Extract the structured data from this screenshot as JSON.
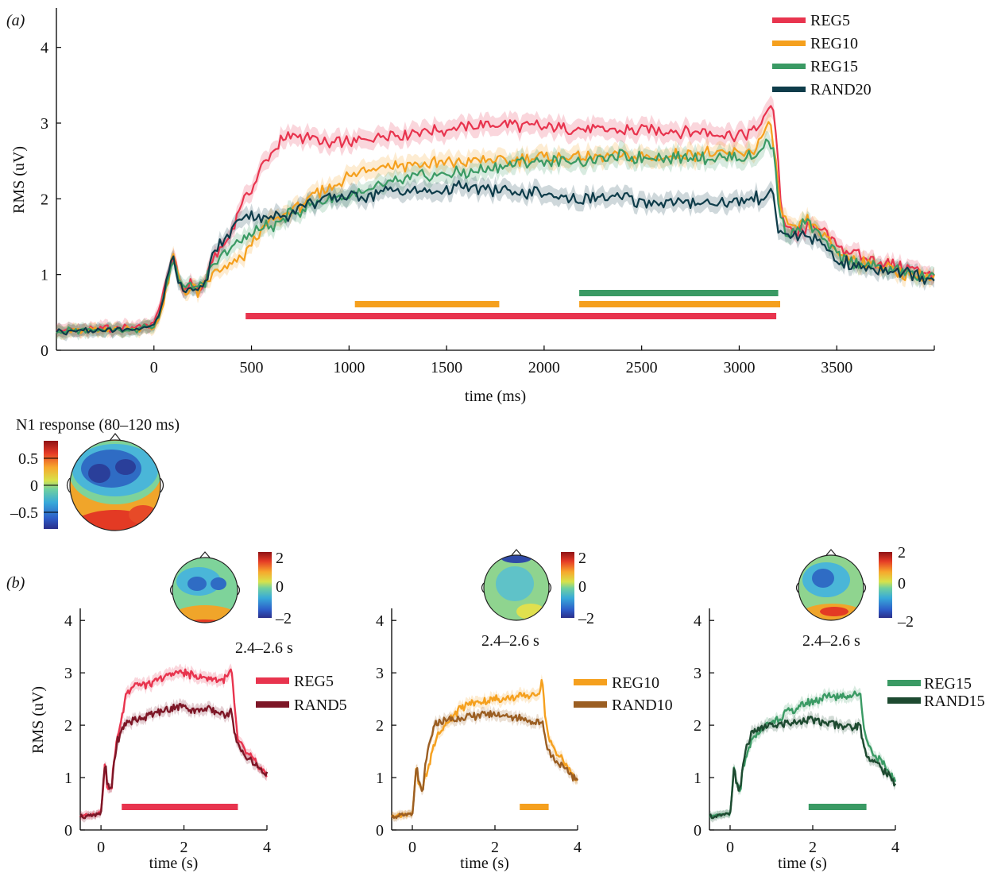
{
  "panel_a": {
    "label": "(a)",
    "legend": [
      "REG5",
      "REG10",
      "REG15",
      "RAND20"
    ],
    "topo_title": "N1 response (80–120 ms)",
    "topo_colorbar_ticks": [
      "0.5",
      "0",
      "–0.5"
    ]
  },
  "panel_b": {
    "label": "(b)",
    "subplots": [
      {
        "time_window": "2.4–2.6 s",
        "colorbar_ticks": [
          "2",
          "0",
          "–2"
        ],
        "legend": [
          "REG5",
          "RAND5"
        ]
      },
      {
        "time_window": "2.4–2.6 s",
        "colorbar_ticks": [
          "2",
          "0",
          "–2"
        ],
        "legend": [
          "REG10",
          "RAND10"
        ]
      },
      {
        "time_window": "2.4–2.6 s",
        "colorbar_ticks": [
          "2",
          "0",
          "–2"
        ],
        "legend": [
          "REG15",
          "RAND15"
        ]
      }
    ]
  },
  "colors": {
    "REG5": "#e8344e",
    "REG10": "#f5a01e",
    "REG15": "#3a9a64",
    "RAND20": "#0e3c4a",
    "RAND5": "#7d1626",
    "RAND10": "#9b5e22",
    "RAND15": "#1d4a30"
  },
  "chart_data": [
    {
      "type": "line",
      "xlabel": "time (ms)",
      "ylabel": "RMS (uV)",
      "xlim": [
        -500,
        4000
      ],
      "ylim": [
        0,
        4.5
      ],
      "xticks": [
        0,
        500,
        1000,
        1500,
        2000,
        2500,
        3000,
        3500
      ],
      "yticks": [
        0,
        1,
        2,
        3,
        4
      ],
      "series": [
        {
          "name": "REG5",
          "x": [
            -500,
            -100,
            0,
            30,
            60,
            100,
            130,
            160,
            200,
            230,
            260,
            300,
            340,
            380,
            420,
            460,
            500,
            550,
            600,
            650,
            700,
            800,
            900,
            1000,
            1100,
            1200,
            1400,
            1600,
            1800,
            2000,
            2200,
            2400,
            2600,
            2800,
            3000,
            3080,
            3120,
            3160,
            3180,
            3200,
            3220,
            3260,
            3300,
            3350,
            3400,
            3500,
            3600,
            3800,
            4000
          ],
          "y": [
            0.25,
            0.3,
            0.35,
            0.6,
            0.9,
            1.25,
            0.85,
            0.8,
            0.9,
            0.75,
            0.9,
            1.2,
            1.3,
            1.45,
            1.75,
            2.0,
            2.1,
            2.4,
            2.6,
            2.75,
            2.82,
            2.8,
            2.7,
            2.75,
            2.8,
            2.85,
            2.9,
            2.95,
            3.0,
            2.95,
            2.93,
            2.9,
            2.9,
            2.88,
            2.85,
            2.9,
            3.0,
            3.25,
            3.15,
            2.5,
            1.75,
            1.55,
            1.55,
            1.6,
            1.65,
            1.4,
            1.25,
            1.1,
            1.0
          ]
        },
        {
          "name": "REG10",
          "x": [
            -500,
            -100,
            0,
            30,
            60,
            100,
            130,
            160,
            200,
            230,
            260,
            300,
            340,
            380,
            420,
            460,
            500,
            550,
            600,
            650,
            700,
            800,
            900,
            1000,
            1100,
            1200,
            1400,
            1600,
            1800,
            2000,
            2200,
            2400,
            2600,
            2800,
            3000,
            3080,
            3120,
            3160,
            3180,
            3200,
            3220,
            3260,
            3300,
            3350,
            3400,
            3500,
            3600,
            3800,
            4000
          ],
          "y": [
            0.25,
            0.28,
            0.3,
            0.45,
            0.75,
            1.25,
            0.9,
            0.75,
            0.85,
            0.75,
            0.85,
            1.0,
            1.05,
            1.1,
            1.15,
            1.25,
            1.4,
            1.55,
            1.7,
            1.75,
            1.85,
            2.0,
            2.15,
            2.3,
            2.4,
            2.45,
            2.45,
            2.5,
            2.5,
            2.55,
            2.55,
            2.55,
            2.55,
            2.6,
            2.6,
            2.65,
            2.85,
            2.95,
            2.7,
            2.1,
            1.8,
            1.6,
            1.65,
            1.7,
            1.6,
            1.3,
            1.2,
            1.05,
            0.95
          ]
        },
        {
          "name": "REG15",
          "x": [
            -500,
            -100,
            0,
            30,
            60,
            100,
            130,
            160,
            200,
            230,
            260,
            300,
            340,
            380,
            420,
            460,
            500,
            550,
            600,
            650,
            700,
            800,
            900,
            1000,
            1100,
            1200,
            1400,
            1600,
            1800,
            2000,
            2200,
            2400,
            2600,
            2800,
            3000,
            3080,
            3120,
            3160,
            3180,
            3200,
            3220,
            3260,
            3300,
            3350,
            3400,
            3500,
            3600,
            3800,
            4000
          ],
          "y": [
            0.25,
            0.28,
            0.3,
            0.5,
            0.85,
            1.2,
            0.9,
            0.8,
            0.9,
            0.8,
            0.9,
            1.1,
            1.2,
            1.3,
            1.4,
            1.45,
            1.55,
            1.6,
            1.65,
            1.7,
            1.8,
            1.9,
            2.0,
            2.05,
            2.1,
            2.2,
            2.3,
            2.35,
            2.45,
            2.5,
            2.5,
            2.55,
            2.55,
            2.55,
            2.55,
            2.55,
            2.7,
            2.75,
            2.6,
            2.0,
            1.65,
            1.55,
            1.6,
            1.7,
            1.55,
            1.25,
            1.15,
            1.05,
            0.95
          ]
        },
        {
          "name": "RAND20",
          "x": [
            -500,
            -100,
            0,
            30,
            60,
            100,
            130,
            160,
            200,
            230,
            260,
            300,
            340,
            380,
            420,
            460,
            500,
            550,
            600,
            650,
            700,
            800,
            900,
            1000,
            1100,
            1200,
            1400,
            1600,
            1800,
            2000,
            2200,
            2400,
            2600,
            2800,
            3000,
            3080,
            3120,
            3160,
            3180,
            3200,
            3220,
            3260,
            3300,
            3350,
            3400,
            3500,
            3600,
            3800,
            4000
          ],
          "y": [
            0.25,
            0.28,
            0.32,
            0.5,
            0.85,
            1.3,
            0.85,
            0.8,
            0.85,
            0.75,
            0.85,
            1.25,
            1.4,
            1.5,
            1.7,
            1.8,
            1.8,
            1.75,
            1.75,
            1.8,
            1.8,
            1.95,
            2.0,
            2.05,
            2.05,
            2.1,
            2.1,
            2.15,
            2.1,
            2.05,
            2.0,
            2.0,
            1.95,
            1.95,
            1.95,
            2.0,
            2.0,
            2.1,
            2.0,
            1.6,
            1.55,
            1.5,
            1.5,
            1.5,
            1.45,
            1.2,
            1.1,
            1.05,
            0.95
          ]
        }
      ],
      "significance_bars": [
        {
          "series": "REG15",
          "x": [
            2180,
            3200
          ]
        },
        {
          "series": "REG10",
          "x": [
            1030,
            1770
          ]
        },
        {
          "series": "REG10",
          "x": [
            2180,
            3210
          ]
        },
        {
          "series": "REG5",
          "x": [
            470,
            3190
          ]
        }
      ]
    },
    {
      "type": "line",
      "xlabel": "time (s)",
      "ylabel": "RMS (uV)",
      "xlim": [
        -0.5,
        4
      ],
      "ylim": [
        0,
        4.2
      ],
      "xticks": [
        0,
        2,
        4
      ],
      "yticks": [
        0,
        1,
        2,
        3,
        4
      ],
      "series": [
        {
          "name": "REG5",
          "x": [
            -0.5,
            -0.1,
            0,
            0.05,
            0.1,
            0.15,
            0.2,
            0.25,
            0.3,
            0.4,
            0.5,
            0.6,
            0.8,
            1.0,
            1.2,
            1.4,
            1.6,
            1.8,
            2.0,
            2.2,
            2.4,
            2.6,
            2.8,
            3.0,
            3.1,
            3.15,
            3.2,
            3.3,
            3.4,
            3.5,
            3.7,
            4.0
          ],
          "y": [
            0.25,
            0.3,
            0.35,
            0.8,
            1.3,
            0.85,
            0.8,
            0.75,
            1.2,
            1.8,
            2.1,
            2.6,
            2.8,
            2.75,
            2.8,
            2.85,
            2.95,
            3.0,
            3.0,
            2.95,
            2.9,
            2.9,
            2.85,
            2.9,
            3.0,
            3.05,
            2.5,
            1.7,
            1.6,
            1.5,
            1.3,
            1.05
          ]
        },
        {
          "name": "RAND5",
          "x": [
            -0.5,
            -0.1,
            0,
            0.05,
            0.1,
            0.15,
            0.2,
            0.25,
            0.3,
            0.4,
            0.5,
            0.6,
            0.8,
            1.0,
            1.2,
            1.4,
            1.6,
            1.8,
            2.0,
            2.2,
            2.4,
            2.6,
            2.8,
            3.0,
            3.1,
            3.15,
            3.2,
            3.3,
            3.4,
            3.5,
            3.7,
            4.0
          ],
          "y": [
            0.25,
            0.3,
            0.32,
            0.8,
            1.3,
            0.85,
            0.8,
            0.75,
            1.2,
            1.7,
            1.9,
            2.05,
            2.1,
            2.15,
            2.2,
            2.25,
            2.3,
            2.35,
            2.35,
            2.3,
            2.3,
            2.3,
            2.25,
            2.2,
            2.25,
            2.3,
            1.9,
            1.6,
            1.5,
            1.4,
            1.25,
            1.05
          ]
        }
      ],
      "significance_bars": [
        {
          "series": "REG5",
          "x": [
            0.5,
            3.3
          ]
        }
      ]
    },
    {
      "type": "line",
      "xlabel": "time (s)",
      "ylabel": "",
      "xlim": [
        -0.5,
        4
      ],
      "ylim": [
        0,
        4.2
      ],
      "xticks": [
        0,
        2,
        4
      ],
      "yticks": [
        0,
        1,
        2,
        3,
        4
      ],
      "series": [
        {
          "name": "REG10",
          "x": [
            -0.5,
            -0.1,
            0,
            0.05,
            0.1,
            0.15,
            0.2,
            0.25,
            0.3,
            0.4,
            0.5,
            0.6,
            0.8,
            1.0,
            1.2,
            1.4,
            1.6,
            1.8,
            2.0,
            2.2,
            2.4,
            2.6,
            2.8,
            3.0,
            3.1,
            3.15,
            3.2,
            3.3,
            3.4,
            3.5,
            3.7,
            4.0
          ],
          "y": [
            0.25,
            0.3,
            0.3,
            0.7,
            1.25,
            0.9,
            0.8,
            0.75,
            1.0,
            1.2,
            1.55,
            1.8,
            2.0,
            2.2,
            2.35,
            2.4,
            2.45,
            2.45,
            2.5,
            2.5,
            2.5,
            2.55,
            2.55,
            2.6,
            2.7,
            2.9,
            2.3,
            1.7,
            1.6,
            1.5,
            1.25,
            0.95
          ]
        },
        {
          "name": "RAND10",
          "x": [
            -0.5,
            -0.1,
            0,
            0.05,
            0.1,
            0.15,
            0.2,
            0.25,
            0.3,
            0.4,
            0.5,
            0.6,
            0.8,
            1.0,
            1.2,
            1.4,
            1.6,
            1.8,
            2.0,
            2.2,
            2.4,
            2.6,
            2.8,
            3.0,
            3.1,
            3.15,
            3.2,
            3.3,
            3.4,
            3.5,
            3.7,
            4.0
          ],
          "y": [
            0.25,
            0.3,
            0.3,
            0.7,
            1.25,
            0.9,
            0.8,
            0.75,
            1.1,
            1.6,
            1.9,
            2.05,
            2.1,
            2.1,
            2.15,
            2.15,
            2.2,
            2.2,
            2.2,
            2.2,
            2.15,
            2.15,
            2.1,
            2.05,
            2.05,
            2.1,
            1.8,
            1.5,
            1.4,
            1.3,
            1.15,
            0.95
          ]
        }
      ],
      "significance_bars": [
        {
          "series": "REG10",
          "x": [
            2.6,
            3.3
          ]
        }
      ]
    },
    {
      "type": "line",
      "xlabel": "time (s)",
      "ylabel": "",
      "xlim": [
        -0.5,
        4
      ],
      "ylim": [
        0,
        4.2
      ],
      "xticks": [
        0,
        2,
        4
      ],
      "yticks": [
        0,
        1,
        2,
        3,
        4
      ],
      "series": [
        {
          "name": "REG15",
          "x": [
            -0.5,
            -0.1,
            0,
            0.05,
            0.1,
            0.15,
            0.2,
            0.25,
            0.3,
            0.4,
            0.5,
            0.6,
            0.8,
            1.0,
            1.2,
            1.4,
            1.6,
            1.8,
            2.0,
            2.2,
            2.4,
            2.6,
            2.8,
            3.0,
            3.1,
            3.15,
            3.2,
            3.3,
            3.4,
            3.5,
            3.7,
            4.0
          ],
          "y": [
            0.25,
            0.3,
            0.3,
            0.7,
            1.25,
            0.9,
            0.8,
            0.75,
            1.1,
            1.4,
            1.65,
            1.8,
            1.95,
            2.05,
            2.15,
            2.25,
            2.3,
            2.4,
            2.45,
            2.5,
            2.55,
            2.55,
            2.55,
            2.6,
            2.6,
            2.65,
            2.2,
            1.7,
            1.55,
            1.45,
            1.25,
            0.95
          ]
        },
        {
          "name": "RAND15",
          "x": [
            -0.5,
            -0.1,
            0,
            0.05,
            0.1,
            0.15,
            0.2,
            0.25,
            0.3,
            0.4,
            0.5,
            0.6,
            0.8,
            1.0,
            1.2,
            1.4,
            1.6,
            1.8,
            2.0,
            2.2,
            2.4,
            2.6,
            2.8,
            3.0,
            3.1,
            3.15,
            3.2,
            3.3,
            3.4,
            3.5,
            3.7,
            4.0
          ],
          "y": [
            0.25,
            0.3,
            0.3,
            0.7,
            1.25,
            0.9,
            0.8,
            0.75,
            1.2,
            1.6,
            1.8,
            1.9,
            1.95,
            2.0,
            2.0,
            2.05,
            2.05,
            2.1,
            2.1,
            2.05,
            2.05,
            2.0,
            2.0,
            1.95,
            2.0,
            2.0,
            1.7,
            1.45,
            1.35,
            1.3,
            1.15,
            0.9
          ]
        }
      ],
      "significance_bars": [
        {
          "series": "REG15",
          "x": [
            1.9,
            3.3
          ]
        }
      ]
    }
  ]
}
